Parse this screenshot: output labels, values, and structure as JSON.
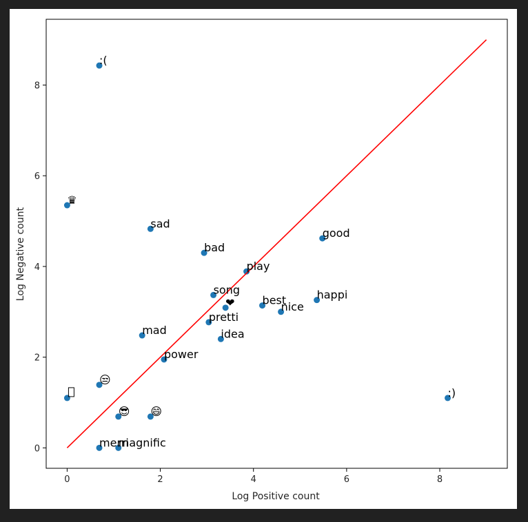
{
  "chart_data": {
    "type": "scatter",
    "title": "",
    "xlabel": "Log Positive count",
    "ylabel": "Log Negative count",
    "xlim": [
      -0.45,
      9.45
    ],
    "ylim": [
      -0.45,
      9.45
    ],
    "xticks": [
      "0",
      "2",
      "4",
      "6",
      "8"
    ],
    "xtick_values": [
      0,
      2,
      4,
      6,
      8
    ],
    "yticks": [
      "0",
      "2",
      "4",
      "6",
      "8"
    ],
    "ytick_values": [
      0,
      2,
      4,
      6,
      8
    ],
    "grid": false,
    "point_color": "#1f77b4",
    "reference_line": {
      "from": [
        0,
        0
      ],
      "to": [
        9,
        9
      ],
      "color": "#ff0000"
    },
    "points": [
      {
        "label": ":(",
        "x": 0.69,
        "y": 8.43
      },
      {
        "label": "♛",
        "x": 0.0,
        "y": 5.35
      },
      {
        "label": "sad",
        "x": 1.79,
        "y": 4.83
      },
      {
        "label": "bad",
        "x": 2.94,
        "y": 4.3
      },
      {
        "label": "good",
        "x": 5.48,
        "y": 4.62
      },
      {
        "label": "play",
        "x": 3.85,
        "y": 3.89
      },
      {
        "label": "song",
        "x": 3.14,
        "y": 3.37
      },
      {
        "label": "❤",
        "x": 3.4,
        "y": 3.09
      },
      {
        "label": "best",
        "x": 4.19,
        "y": 3.14
      },
      {
        "label": "nice",
        "x": 4.59,
        "y": 3.0
      },
      {
        "label": "happi",
        "x": 5.36,
        "y": 3.26
      },
      {
        "label": "pretti",
        "x": 3.04,
        "y": 2.77
      },
      {
        "label": "mad",
        "x": 1.61,
        "y": 2.48
      },
      {
        "label": "idea",
        "x": 3.3,
        "y": 2.4
      },
      {
        "label": "power",
        "x": 2.08,
        "y": 1.95
      },
      {
        "label": "😒",
        "x": 0.69,
        "y": 1.39
      },
      {
        "label": "",
        "x": 0.0,
        "y": 1.1
      },
      {
        "label": ":)",
        "x": 8.17,
        "y": 1.1
      },
      {
        "label": "😎",
        "x": 1.1,
        "y": 0.69
      },
      {
        "label": "😄",
        "x": 1.79,
        "y": 0.69
      },
      {
        "label": "merri",
        "x": 0.69,
        "y": 0.0
      },
      {
        "label": "magnific",
        "x": 1.1,
        "y": 0.0
      }
    ]
  }
}
